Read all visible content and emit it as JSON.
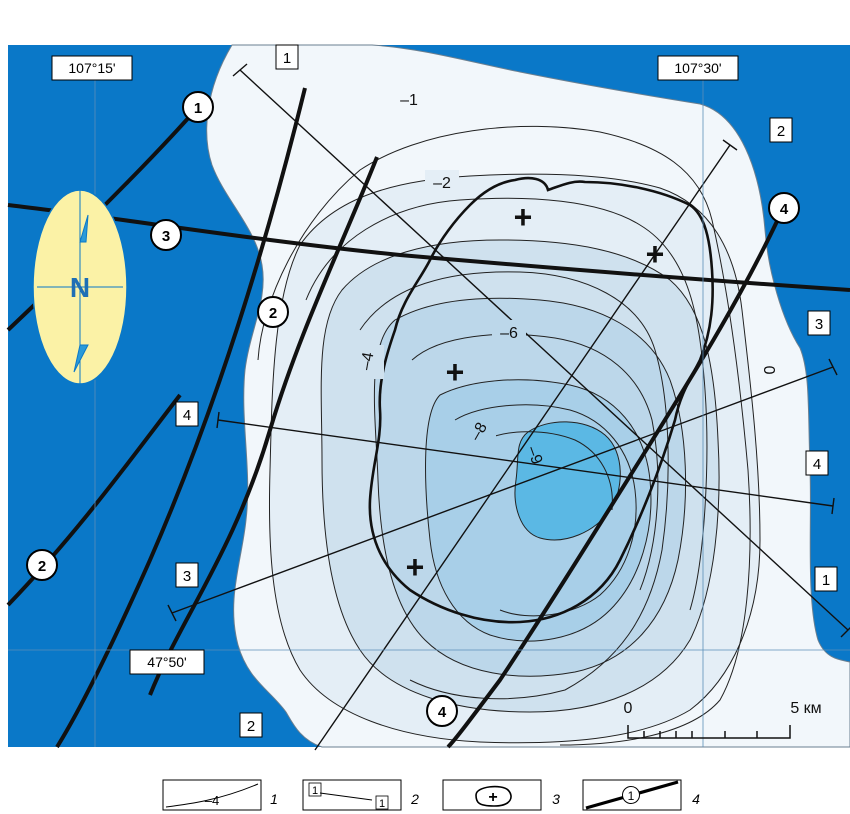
{
  "map": {
    "coords": {
      "lon_left": "107°15'",
      "lon_right": "107°30'",
      "lat_bottom": "47°50'"
    },
    "compass_letter": "N",
    "contour_labels": [
      "–1",
      "–2",
      "–4",
      "–6",
      "–8",
      "–9",
      "0"
    ],
    "profile_labels": {
      "p1_start": "1",
      "p1_end": "1",
      "p2_start": "2",
      "p2_end": "2",
      "p3_start": "3",
      "p3_end": "3",
      "p4_start": "4",
      "p4_end": "4"
    },
    "fault_labels": {
      "f1": "1",
      "f2_north": "2",
      "f2_south": "2",
      "f3": "3",
      "f4_north": "4",
      "f4_south": "4"
    },
    "anomaly_signs": [
      "+",
      "+",
      "+",
      "+"
    ],
    "scale_bar": {
      "start": "0",
      "end": "5 км"
    }
  },
  "legend": {
    "items": [
      {
        "number": "1",
        "sample_text": "–4"
      },
      {
        "number": "2",
        "sample_start": "1",
        "sample_end": "1"
      },
      {
        "number": "3",
        "sample_text": "+"
      },
      {
        "number": "4",
        "sample_text": "1"
      }
    ]
  },
  "colors": {
    "water": "#0a78c8",
    "land": "#f2f7fb",
    "shade_1": "#e4eef6",
    "shade_2": "#cfe1ee",
    "shade_3": "#bcd7ea",
    "shade_4": "#a8cfe8",
    "core": "#5bb8e4",
    "compass_fill": "#fbf2a6",
    "compass_arrow": "#2a9ad8"
  }
}
